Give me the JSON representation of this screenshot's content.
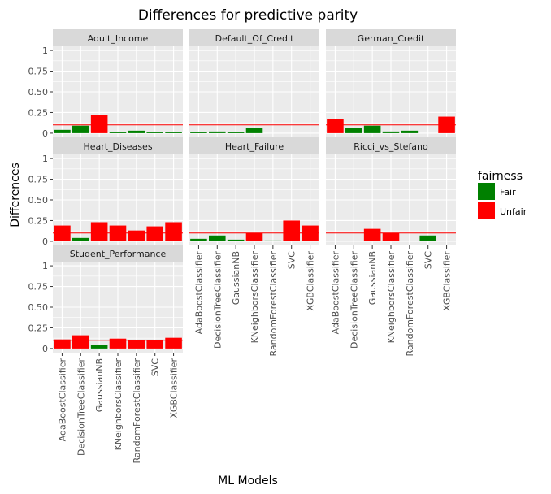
{
  "chart_data": {
    "type": "bar",
    "title": "Differences for predictive parity",
    "xlabel": "ML Models",
    "ylabel": "Differences",
    "ylim": [
      -0.05,
      1.05
    ],
    "yticks": [
      0,
      0.25,
      0.5,
      0.75,
      1
    ],
    "ytick_labels": [
      "0",
      "0.25",
      "0.50",
      "0.75",
      "1"
    ],
    "threshold": 0.1,
    "categories": [
      "AdaBoostClassifier",
      "DecisionTreeClassifier",
      "GaussianNB",
      "KNeighborsClassifier",
      "RandomForestClassifier",
      "SVC",
      "XGBClassifier"
    ],
    "legend": {
      "title": "fairness",
      "placement": "right",
      "entries": [
        {
          "label": "Fair",
          "color": "#008000"
        },
        {
          "label": "Unfair",
          "color": "#ff0000"
        }
      ]
    },
    "colors": {
      "Fair": "#008000",
      "Unfair": "#ff0000",
      "threshold_line": "#ff0000",
      "panel_bg": "#ebebeb",
      "strip_bg": "#d9d9d9"
    },
    "panels": [
      {
        "name": "Adult_Income",
        "values": [
          0.04,
          0.09,
          0.22,
          0.01,
          0.03,
          0.01,
          0.01
        ]
      },
      {
        "name": "Default_Of_Credit",
        "values": [
          0.01,
          0.02,
          0.01,
          0.06,
          0.0,
          0.0,
          0.0
        ]
      },
      {
        "name": "German_Credit",
        "values": [
          0.17,
          0.06,
          0.09,
          0.02,
          0.03,
          0.0,
          0.2
        ]
      },
      {
        "name": "Heart_Diseases",
        "values": [
          0.19,
          0.04,
          0.23,
          0.19,
          0.13,
          0.18,
          0.23
        ]
      },
      {
        "name": "Heart_Failure",
        "values": [
          0.03,
          0.07,
          0.02,
          0.1,
          0.01,
          0.25,
          0.19
        ]
      },
      {
        "name": "Ricci_vs_Stefano",
        "values": [
          0.0,
          0.0,
          0.15,
          0.1,
          0.0,
          0.07,
          0.0
        ]
      },
      {
        "name": "Student_Performance",
        "values": [
          0.11,
          0.16,
          0.04,
          0.12,
          0.1,
          0.1,
          0.13
        ]
      }
    ]
  }
}
